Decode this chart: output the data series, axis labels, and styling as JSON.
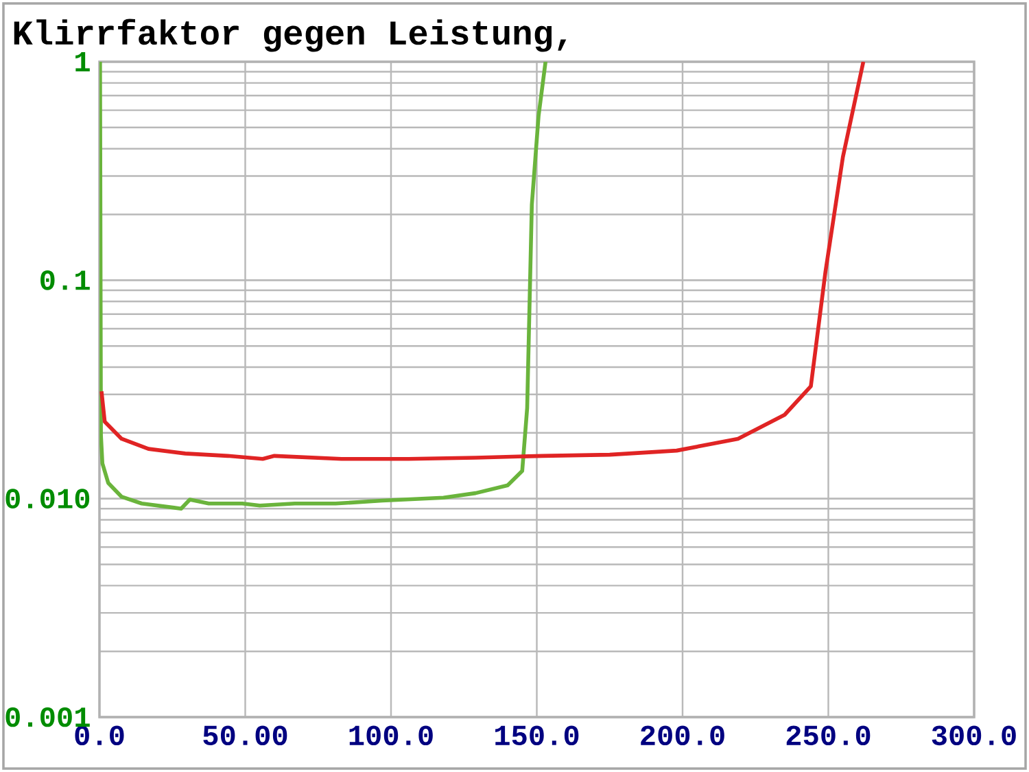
{
  "chart_data": {
    "type": "line",
    "title": "Klirrfaktor gegen Leistung,",
    "log": "y",
    "grid": true,
    "marker": "none",
    "line_style": "solid",
    "xlim": [
      0,
      300
    ],
    "ylim": [
      0.001,
      1
    ],
    "xticks": [
      {
        "value": 0,
        "label": "0.0"
      },
      {
        "value": 50,
        "label": "50.00"
      },
      {
        "value": 100,
        "label": "100.0"
      },
      {
        "value": 150,
        "label": "150.0"
      },
      {
        "value": 200,
        "label": "200.0"
      },
      {
        "value": 250,
        "label": "250.0"
      },
      {
        "value": 300,
        "label": "300.0"
      }
    ],
    "yticks": [
      {
        "value": 0.001,
        "label": "0.001"
      },
      {
        "value": 0.01,
        "label": "0.010"
      },
      {
        "value": 0.1,
        "label": "0.1"
      },
      1
    ],
    "series": [
      {
        "color": "#6ab43c",
        "x": [
          0.2,
          0.5,
          1,
          3,
          7.6,
          14.5,
          28,
          31,
          37.5,
          49,
          55,
          67,
          81,
          97,
          118,
          129,
          140,
          145,
          146.7,
          148.3,
          150.6,
          153
        ],
        "values": [
          1,
          0.0195,
          0.0145,
          0.0118,
          0.0102,
          0.0095,
          0.009,
          0.0099,
          0.0095,
          0.0095,
          0.0093,
          0.0095,
          0.0095,
          0.0098,
          0.0101,
          0.0106,
          0.0115,
          0.0134,
          0.026,
          0.222,
          0.564,
          1
        ]
      },
      {
        "color": "#e02424",
        "x": [
          0.7,
          1.8,
          7.6,
          16.8,
          29.4,
          44,
          56,
          60,
          83,
          106,
          129,
          152,
          175,
          198,
          219,
          235,
          244,
          249,
          255,
          262
        ],
        "values": [
          0.031,
          0.0225,
          0.0188,
          0.0169,
          0.0161,
          0.0157,
          0.0152,
          0.0157,
          0.0152,
          0.0152,
          0.0154,
          0.0157,
          0.0159,
          0.0166,
          0.0188,
          0.0242,
          0.0327,
          0.109,
          0.367,
          1
        ]
      }
    ]
  }
}
